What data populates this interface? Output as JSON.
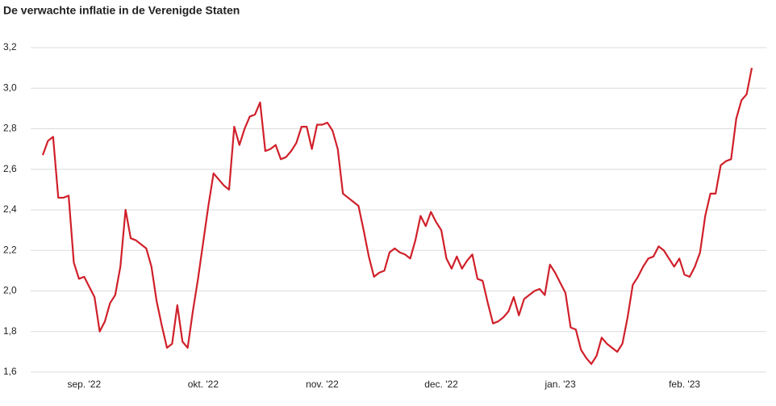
{
  "chart_data": {
    "type": "line",
    "title": "De verwachte inflatie in de Verenigde Staten",
    "categories": [
      null,
      null,
      null,
      null,
      null,
      null,
      null,
      null,
      "sep. '22",
      null,
      null,
      null,
      null,
      null,
      null,
      null,
      null,
      null,
      null,
      null,
      null,
      null,
      null,
      null,
      null,
      null,
      null,
      null,
      null,
      null,
      null,
      "okt. '22",
      null,
      null,
      null,
      null,
      null,
      null,
      null,
      null,
      null,
      null,
      null,
      null,
      null,
      null,
      null,
      null,
      null,
      null,
      null,
      null,
      null,
      null,
      "nov. '22",
      null,
      null,
      null,
      null,
      null,
      null,
      null,
      null,
      null,
      null,
      null,
      null,
      null,
      null,
      null,
      null,
      null,
      null,
      null,
      null,
      null,
      null,
      "dec. '22",
      null,
      null,
      null,
      null,
      null,
      null,
      null,
      null,
      null,
      null,
      null,
      null,
      null,
      null,
      null,
      null,
      null,
      null,
      null,
      null,
      null,
      null,
      "jan. '23",
      null,
      null,
      null,
      null,
      null,
      null,
      null,
      null,
      null,
      null,
      null,
      null,
      null,
      null,
      null,
      null,
      null,
      null,
      null,
      null,
      null,
      null,
      null,
      "feb. '23",
      null,
      null,
      null,
      null,
      null,
      null,
      null,
      null,
      null,
      null,
      null,
      null,
      null
    ],
    "values": [
      2.67,
      2.74,
      2.76,
      2.46,
      2.46,
      2.47,
      2.14,
      2.06,
      2.07,
      2.02,
      1.97,
      1.8,
      1.85,
      1.94,
      1.98,
      2.12,
      2.4,
      2.26,
      2.25,
      2.23,
      2.21,
      2.12,
      1.95,
      1.83,
      1.72,
      1.74,
      1.93,
      1.75,
      1.72,
      1.9,
      2.06,
      2.24,
      2.42,
      2.58,
      2.55,
      2.52,
      2.5,
      2.81,
      2.72,
      2.8,
      2.86,
      2.87,
      2.93,
      2.69,
      2.7,
      2.72,
      2.65,
      2.66,
      2.69,
      2.73,
      2.81,
      2.81,
      2.7,
      2.82,
      2.82,
      2.83,
      2.79,
      2.7,
      2.48,
      2.46,
      2.44,
      2.42,
      2.3,
      2.17,
      2.07,
      2.09,
      2.1,
      2.19,
      2.21,
      2.19,
      2.18,
      2.16,
      2.25,
      2.37,
      2.32,
      2.39,
      2.34,
      2.3,
      2.16,
      2.11,
      2.17,
      2.11,
      2.15,
      2.18,
      2.06,
      2.05,
      1.94,
      1.84,
      1.85,
      1.87,
      1.9,
      1.97,
      1.88,
      1.96,
      1.98,
      2.0,
      2.01,
      1.98,
      2.13,
      2.09,
      2.04,
      1.99,
      1.82,
      1.81,
      1.71,
      1.67,
      1.64,
      1.68,
      1.77,
      1.74,
      1.72,
      1.7,
      1.74,
      1.87,
      2.03,
      2.07,
      2.12,
      2.16,
      2.17,
      2.22,
      2.2,
      2.16,
      2.12,
      2.16,
      2.08,
      2.07,
      2.12,
      2.19,
      2.37,
      2.48,
      2.48,
      2.62,
      2.64,
      2.65,
      2.85,
      2.94,
      2.97,
      3.1
    ],
    "color": "#d0202a",
    "ylim": [
      1.6,
      3.2
    ],
    "yticks": [
      {
        "value": 1.6,
        "label": "1,6"
      },
      {
        "value": 1.8,
        "label": "1,8"
      },
      {
        "value": 2.0,
        "label": "2,0"
      },
      {
        "value": 2.2,
        "label": "2,2"
      },
      {
        "value": 2.4,
        "label": "2,4"
      },
      {
        "value": 2.6,
        "label": "2,6"
      },
      {
        "value": 2.8,
        "label": "2,8"
      },
      {
        "value": 3.0,
        "label": "3,0"
      },
      {
        "value": 3.2,
        "label": "3,2"
      }
    ],
    "grid": true
  }
}
